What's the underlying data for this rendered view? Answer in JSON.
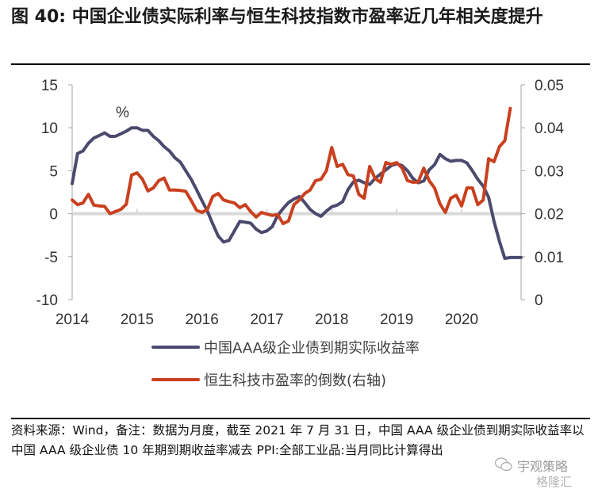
{
  "title": "图 40: 中国企业债实际利率与恒生科技指数市盈率近几年相关度提升",
  "footnote": "资料来源：Wind，备注：数据为月度，截至 2021 年 7 月 31 日，中国 AAA 级企业债到期实际收益率以中国 AAA 级企业债 10 年期到期收益率减去 PPI:全部工业品:当月同比计算得出",
  "watermark": {
    "account": "宇观策略",
    "site": "格隆汇"
  },
  "chart_data": {
    "type": "line",
    "title": "中国企业债实际利率与恒生科技指数市盈率近几年相关度提升",
    "unit_label": "%",
    "x_ticks": [
      "2014",
      "2015",
      "2016",
      "2017",
      "2018",
      "2019",
      "2020"
    ],
    "x_start": "2014-01",
    "frequency": "monthly",
    "left_axis": {
      "ticks": [
        15,
        10,
        5,
        0,
        -5,
        -10
      ],
      "range": [
        -10,
        15
      ]
    },
    "right_axis": {
      "ticks": [
        0.05,
        0.04,
        0.03,
        0.02,
        0.01,
        0
      ],
      "range": [
        0,
        0.05
      ]
    },
    "grid": false,
    "legend_position": "bottom",
    "colors": {
      "left_series": "#4b4a6e",
      "right_series": "#c9401f",
      "zero_line": "#d9d9d9",
      "axis": "#a6a6a6"
    },
    "series": [
      {
        "name": "中国AAA级企业债到期实际收益率",
        "axis": "left",
        "values": [
          3.5,
          7.0,
          7.3,
          8.2,
          8.8,
          9.1,
          9.4,
          9.0,
          9.0,
          9.3,
          9.6,
          10.0,
          10.0,
          9.7,
          9.7,
          9.0,
          8.5,
          7.8,
          7.3,
          6.5,
          6.0,
          5.0,
          4.0,
          2.8,
          1.5,
          0.3,
          -1.2,
          -2.6,
          -3.3,
          -3.1,
          -2.0,
          -0.9,
          -1.0,
          -1.1,
          -1.8,
          -2.2,
          -2.0,
          -1.5,
          -0.2,
          0.6,
          1.3,
          1.7,
          2.0,
          1.3,
          0.5,
          0.0,
          -0.3,
          0.3,
          0.8,
          1.0,
          1.4,
          2.8,
          3.7,
          3.9,
          3.6,
          3.4,
          4.1,
          4.6,
          5.1,
          5.6,
          5.8,
          5.6,
          5.0,
          4.1,
          3.6,
          3.8,
          5.1,
          5.7,
          6.9,
          6.4,
          6.1,
          6.2,
          6.2,
          5.9,
          5.0,
          4.0,
          3.2,
          1.9,
          -0.9,
          -3.2,
          -5.2,
          -5.1,
          -5.1,
          -5.1
        ]
      },
      {
        "name": "恒生科技市盈率的倒数(右轴)",
        "axis": "right",
        "values": [
          0.0232,
          0.0221,
          0.0225,
          0.0245,
          0.022,
          0.0218,
          0.0217,
          0.02,
          0.0205,
          0.021,
          0.0222,
          0.029,
          0.0295,
          0.028,
          0.0253,
          0.026,
          0.0277,
          0.0283,
          0.0255,
          0.0255,
          0.0254,
          0.0252,
          0.0231,
          0.0208,
          0.0203,
          0.021,
          0.024,
          0.0247,
          0.0232,
          0.0228,
          0.0225,
          0.0214,
          0.0221,
          0.0205,
          0.0192,
          0.0203,
          0.0199,
          0.0196,
          0.0198,
          0.0177,
          0.0183,
          0.0221,
          0.0232,
          0.0247,
          0.0255,
          0.0277,
          0.028,
          0.03,
          0.0354,
          0.031,
          0.0315,
          0.0291,
          0.0288,
          0.0245,
          0.0236,
          0.031,
          0.0282,
          0.0273,
          0.0319,
          0.0315,
          0.0319,
          0.0306,
          0.0277,
          0.0273,
          0.0274,
          0.0306,
          0.0277,
          0.026,
          0.0223,
          0.0203,
          0.0236,
          0.0243,
          0.0218,
          0.026,
          0.026,
          0.0221,
          0.0232,
          0.0328,
          0.0321,
          0.0356,
          0.037,
          0.0445
        ]
      }
    ],
    "legend": [
      "中国AAA级企业债到期实际收益率",
      "恒生科技市盈率的倒数(右轴)"
    ]
  }
}
